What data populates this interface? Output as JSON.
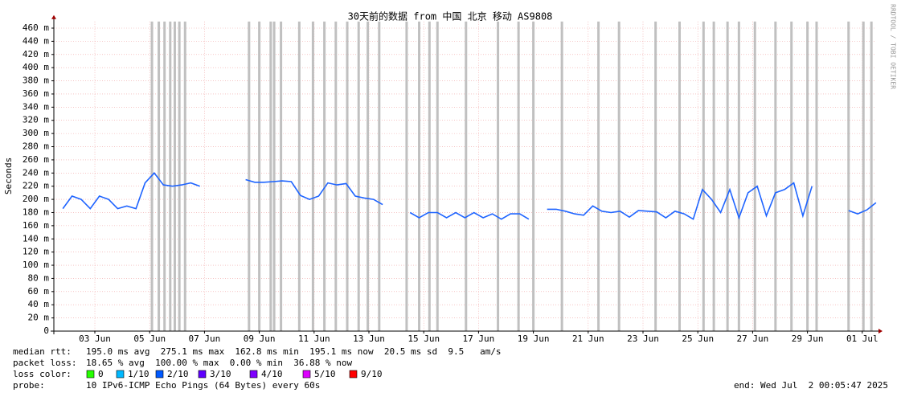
{
  "chart_data": {
    "type": "line",
    "title": "30天前的数据 from 中国 北京 移动 AS9808",
    "y_label": "Seconds",
    "watermark": "RRDTOOL / TOBI OETIKER",
    "xlim": [
      "2025-06-02T00:05:47",
      "2025-07-02T00:05:47"
    ],
    "xticks": [
      {
        "value": "2025-06-03T12:00",
        "label": "03 Jun"
      },
      {
        "value": "2025-06-05T12:00",
        "label": "05 Jun"
      },
      {
        "value": "2025-06-07T12:00",
        "label": "07 Jun"
      },
      {
        "value": "2025-06-09T12:00",
        "label": "09 Jun"
      },
      {
        "value": "2025-06-11T12:00",
        "label": "11 Jun"
      },
      {
        "value": "2025-06-13T12:00",
        "label": "13 Jun"
      },
      {
        "value": "2025-06-15T12:00",
        "label": "15 Jun"
      },
      {
        "value": "2025-06-17T12:00",
        "label": "17 Jun"
      },
      {
        "value": "2025-06-19T12:00",
        "label": "19 Jun"
      },
      {
        "value": "2025-06-21T12:00",
        "label": "21 Jun"
      },
      {
        "value": "2025-06-23T12:00",
        "label": "23 Jun"
      },
      {
        "value": "2025-06-25T12:00",
        "label": "25 Jun"
      },
      {
        "value": "2025-06-27T12:00",
        "label": "27 Jun"
      },
      {
        "value": "2025-06-29T12:00",
        "label": "29 Jun"
      },
      {
        "value": "2025-07-01T12:00",
        "label": "01 Jul"
      }
    ],
    "ylim": [
      0,
      470
    ],
    "yticks": [
      0,
      {
        "value": 20,
        "label": "20 m"
      },
      {
        "value": 40,
        "label": "40 m"
      },
      {
        "value": 60,
        "label": "60 m"
      },
      {
        "value": 80,
        "label": "80 m"
      },
      {
        "value": 100,
        "label": "100 m"
      },
      {
        "value": 120,
        "label": "120 m"
      },
      {
        "value": 140,
        "label": "140 m"
      },
      {
        "value": 160,
        "label": "160 m"
      },
      {
        "value": 180,
        "label": "180 m"
      },
      {
        "value": 200,
        "label": "200 m"
      },
      {
        "value": 220,
        "label": "220 m"
      },
      {
        "value": 240,
        "label": "240 m"
      },
      {
        "value": 260,
        "label": "260 m"
      },
      {
        "value": 280,
        "label": "280 m"
      },
      {
        "value": 300,
        "label": "300 m"
      },
      {
        "value": 320,
        "label": "320 m"
      },
      {
        "value": 340,
        "label": "340 m"
      },
      {
        "value": 360,
        "label": "360 m"
      },
      {
        "value": 380,
        "label": "380 m"
      },
      {
        "value": 400,
        "label": "400 m"
      },
      {
        "value": 420,
        "label": "420 m"
      },
      {
        "value": 440,
        "label": "440 m"
      },
      {
        "value": 460,
        "label": "460 m"
      }
    ],
    "grid": true,
    "x": [
      "2025-06-02T08:00",
      "2025-06-02T16:00",
      "2025-06-03T00:00",
      "2025-06-03T08:00",
      "2025-06-03T16:00",
      "2025-06-04T00:00",
      "2025-06-04T08:00",
      "2025-06-04T16:00",
      "2025-06-05T00:00",
      "2025-06-05T08:00",
      "2025-06-05T16:00",
      "2025-06-06T00:00",
      "2025-06-06T08:00",
      "2025-06-06T16:00",
      "2025-06-07T00:00",
      "2025-06-07T08:00",
      "2025-06-07T16:00",
      "2025-06-08T00:00",
      "2025-06-08T08:00",
      "2025-06-08T16:00",
      "2025-06-09T00:00",
      "2025-06-09T08:00",
      "2025-06-09T16:00",
      "2025-06-10T00:00",
      "2025-06-10T08:00",
      "2025-06-10T16:00",
      "2025-06-11T00:00",
      "2025-06-11T08:00",
      "2025-06-11T16:00",
      "2025-06-12T00:00",
      "2025-06-12T08:00",
      "2025-06-12T16:00",
      "2025-06-13T00:00",
      "2025-06-13T08:00",
      "2025-06-13T16:00",
      "2025-06-14T00:00",
      "2025-06-14T08:00",
      "2025-06-14T16:00",
      "2025-06-15T00:00",
      "2025-06-15T08:00",
      "2025-06-15T16:00",
      "2025-06-16T00:00",
      "2025-06-16T08:00",
      "2025-06-16T16:00",
      "2025-06-17T00:00",
      "2025-06-17T08:00",
      "2025-06-17T16:00",
      "2025-06-18T00:00",
      "2025-06-18T08:00",
      "2025-06-18T16:00",
      "2025-06-19T00:00",
      "2025-06-19T08:00",
      "2025-06-19T16:00",
      "2025-06-20T00:00",
      "2025-06-20T08:00",
      "2025-06-20T16:00",
      "2025-06-21T00:00",
      "2025-06-21T08:00",
      "2025-06-21T16:00",
      "2025-06-22T00:00",
      "2025-06-22T08:00",
      "2025-06-22T16:00",
      "2025-06-23T00:00",
      "2025-06-23T08:00",
      "2025-06-23T16:00",
      "2025-06-24T00:00",
      "2025-06-24T08:00",
      "2025-06-24T16:00",
      "2025-06-25T00:00",
      "2025-06-25T08:00",
      "2025-06-25T16:00",
      "2025-06-26T00:00",
      "2025-06-26T08:00",
      "2025-06-26T16:00",
      "2025-06-27T00:00",
      "2025-06-27T08:00",
      "2025-06-27T16:00",
      "2025-06-28T00:00",
      "2025-06-28T08:00",
      "2025-06-28T16:00",
      "2025-06-29T00:00",
      "2025-06-29T08:00",
      "2025-06-29T16:00",
      "2025-06-30T00:00",
      "2025-06-30T08:00",
      "2025-06-30T16:00",
      "2025-07-01T00:00",
      "2025-07-01T08:00",
      "2025-07-01T16:00",
      "2025-07-02T00:00"
    ],
    "series": [
      {
        "color": "#1e64ff",
        "values": [
          186,
          205,
          200,
          186,
          205,
          200,
          186,
          190,
          186,
          225,
          240,
          222,
          220,
          222,
          225,
          220,
          null,
          null,
          null,
          null,
          230,
          226,
          226,
          227,
          228,
          227,
          206,
          200,
          205,
          225,
          222,
          224,
          205,
          202,
          200,
          192,
          null,
          null,
          180,
          172,
          180,
          180,
          172,
          180,
          172,
          180,
          172,
          178,
          170,
          178,
          178,
          170,
          null,
          185,
          185,
          182,
          178,
          176,
          190,
          182,
          180,
          182,
          173,
          183,
          182,
          181,
          172,
          182,
          178,
          170,
          215,
          200,
          180,
          215,
          172,
          210,
          220,
          175,
          210,
          215,
          225,
          175,
          220,
          null,
          null,
          null,
          183,
          178,
          184,
          195
        ]
      }
    ],
    "loss_spikes": {
      "color": "#c0c0c0",
      "x": [
        "2025-06-05T14:00",
        "2025-06-05T20:00",
        "2025-06-06T01:00",
        "2025-06-06T06:00",
        "2025-06-06T10:00",
        "2025-06-06T14:00",
        "2025-06-06T19:00",
        "2025-06-09T03:00",
        "2025-06-09T12:00",
        "2025-06-09T22:00",
        "2025-06-10T01:00",
        "2025-06-10T07:00",
        "2025-06-10T23:00",
        "2025-06-11T11:00",
        "2025-06-11T21:00",
        "2025-06-12T07:00",
        "2025-06-12T17:00",
        "2025-06-13T03:00",
        "2025-06-13T11:00",
        "2025-06-13T21:00",
        "2025-06-14T21:00",
        "2025-06-15T08:00",
        "2025-06-15T17:00",
        "2025-06-16T00:00",
        "2025-06-17T01:00",
        "2025-06-18T05:00",
        "2025-06-18T23:00",
        "2025-06-19T12:00",
        "2025-06-20T13:00",
        "2025-06-21T21:00",
        "2025-06-22T15:00",
        "2025-06-23T23:00",
        "2025-06-24T20:00",
        "2025-06-25T17:00",
        "2025-06-26T02:00",
        "2025-06-26T14:00",
        "2025-06-27T00:00",
        "2025-06-27T14:00",
        "2025-06-28T08:00",
        "2025-06-28T22:00",
        "2025-06-29T12:00",
        "2025-06-29T20:00",
        "2025-07-01T00:00",
        "2025-07-01T13:00",
        "2025-07-01T20:00"
      ]
    },
    "stats": [
      {
        "label": "median rtt:",
        "text": "195.0 ms avg  275.1 ms max  162.8 ms min  195.1 ms now  20.5 ms sd  9.5   am/s"
      },
      {
        "label": "packet loss:",
        "text": "18.65 % avg  100.00 % max  0.00 % min  36.88 % now"
      }
    ],
    "loss_legend": {
      "label": "loss color:",
      "items": [
        {
          "name": "0",
          "color": "#26ff00"
        },
        {
          "name": "1/10",
          "color": "#00b8ff"
        },
        {
          "name": "2/10",
          "color": "#0059ff"
        },
        {
          "name": "3/10",
          "color": "#5e00ff"
        },
        {
          "name": "4/10",
          "color": "#7e00ff"
        },
        {
          "name": "5/10",
          "color": "#dd00ff"
        },
        {
          "name": "9/10",
          "color": "#ff0000"
        }
      ]
    },
    "probe": {
      "label": "probe:",
      "text": "10 IPv6-ICMP Echo Pings (64 Bytes) every 60s"
    },
    "end": "end: Wed Jul  2 00:05:47 2025"
  }
}
